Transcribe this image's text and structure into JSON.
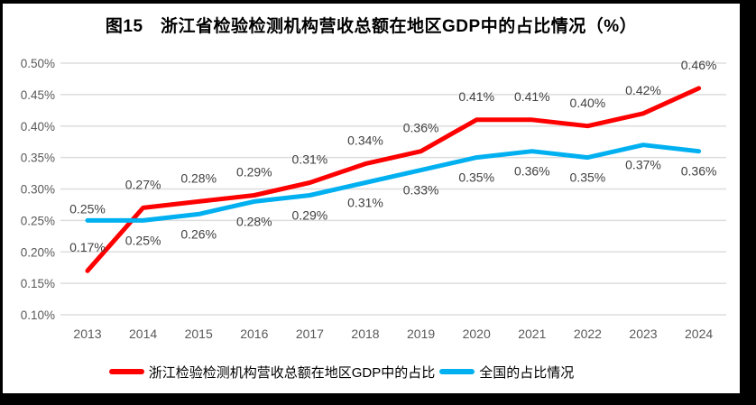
{
  "title": "图15　浙江省检验检测机构营收总额在地区GDP中的占比情况（%）",
  "chart_data": {
    "type": "line",
    "title": "图15　浙江省检验检测机构营收总额在地区GDP中的占比情况（%）",
    "categories": [
      "2013",
      "2014",
      "2015",
      "2016",
      "2017",
      "2018",
      "2019",
      "2020",
      "2021",
      "2022",
      "2023",
      "2024"
    ],
    "series": [
      {
        "name": "浙江检验检测机构营收总额在地区GDP中的占比",
        "color": "#FF0000",
        "values": [
          0.17,
          0.27,
          0.28,
          0.29,
          0.31,
          0.34,
          0.36,
          0.41,
          0.41,
          0.4,
          0.42,
          0.46
        ],
        "labels": [
          "0.17%",
          "0.27%",
          "0.28%",
          "0.29%",
          "0.31%",
          "0.34%",
          "0.36%",
          "0.41%",
          "0.41%",
          "0.40%",
          "0.42%",
          "0.46%"
        ]
      },
      {
        "name": "全国的占比情况",
        "color": "#00B0F0",
        "values": [
          0.25,
          0.25,
          0.26,
          0.28,
          0.29,
          0.31,
          0.33,
          0.35,
          0.36,
          0.35,
          0.37,
          0.36
        ],
        "labels": [
          "0.25%",
          "0.25%",
          "0.26%",
          "0.28%",
          "0.29%",
          "0.31%",
          "0.33%",
          "0.35%",
          "0.36%",
          "0.35%",
          "0.37%",
          "0.36%"
        ]
      }
    ],
    "ylim": [
      0.1,
      0.5
    ],
    "ytick_step": 0.05,
    "ytick_labels": [
      "0.10%",
      "0.15%",
      "0.20%",
      "0.25%",
      "0.30%",
      "0.35%",
      "0.40%",
      "0.45%",
      "0.50%"
    ],
    "xlabel": "",
    "ylabel": "",
    "grid": true,
    "legend_position": "bottom",
    "colors": {
      "gridline": "#DDDDDD",
      "axis_tick_text": "#595959",
      "data_label_text": "#404040",
      "title_text": "#000000",
      "plot_background": "#FFFFFF",
      "frame_border": "#000000"
    }
  }
}
